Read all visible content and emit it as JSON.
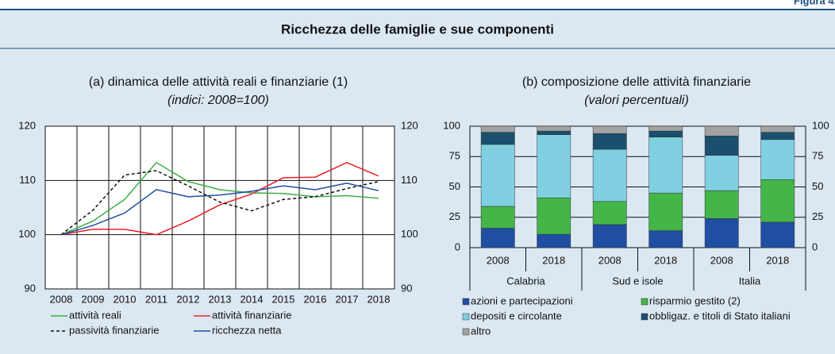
{
  "figure_label": "Figura 4.",
  "panel_title": "Ricchezza delle famiglie e sue componenti",
  "chart_data": [
    {
      "type": "line",
      "title": "(a) dinamica delle attività reali e finanziarie (1)",
      "subtitle": "(indici: 2008=100)",
      "categories": [
        "2008",
        "2009",
        "2010",
        "2011",
        "2012",
        "2013",
        "2014",
        "2015",
        "2016",
        "2017",
        "2018"
      ],
      "ylim": [
        90,
        120
      ],
      "yticks": [
        90,
        100,
        110,
        120
      ],
      "y2lim": [
        90,
        120
      ],
      "y2ticks": [
        90,
        100,
        110,
        120
      ],
      "grid": true,
      "series": [
        {
          "name": "attività reali",
          "color": "#3cb043",
          "style": "solid",
          "values": [
            100,
            102.5,
            106.5,
            113.3,
            109.8,
            108.3,
            107.7,
            107.6,
            107,
            107.2,
            106.7
          ]
        },
        {
          "name": "attività finanziarie",
          "color": "#e8202a",
          "style": "solid",
          "values": [
            100,
            101,
            101,
            100,
            102.5,
            105.5,
            107.5,
            110.5,
            110.6,
            113.3,
            110.8
          ]
        },
        {
          "name": "passività finanziarie",
          "color": "#111111",
          "style": "dashed",
          "values": [
            100,
            104.5,
            111,
            111.8,
            109,
            106,
            104.4,
            106.5,
            107,
            108.5,
            109.8
          ]
        },
        {
          "name": "ricchezza netta",
          "color": "#1f4ea3",
          "style": "solid",
          "values": [
            100,
            101.7,
            104,
            108.3,
            107,
            107.3,
            108,
            109,
            108.3,
            109.5,
            108.1
          ]
        }
      ]
    },
    {
      "type": "stacked_bar",
      "title": "(b) composizione delle attività finanziarie",
      "subtitle": "(valori percentuali)",
      "categories": [
        "2008",
        "2018",
        "2008",
        "2018",
        "2008",
        "2018"
      ],
      "groups": [
        "Calabria",
        "Sud e isole",
        "Italia"
      ],
      "ylim": [
        0,
        100
      ],
      "yticks": [
        0,
        25,
        50,
        75,
        100
      ],
      "y2lim": [
        0,
        100
      ],
      "y2ticks": [
        0,
        25,
        50,
        75,
        100
      ],
      "grid": true,
      "series": [
        {
          "name": "azioni e partecipazioni",
          "color": "#1f4ea3",
          "values": [
            16,
            11,
            19,
            14,
            24,
            21
          ]
        },
        {
          "name": "risparmio gestito (2)",
          "color": "#44b549",
          "values": [
            18,
            30,
            19,
            31,
            23,
            35
          ]
        },
        {
          "name": "depositi e circolante",
          "color": "#80d0e2",
          "values": [
            51,
            52,
            43,
            46,
            29,
            33
          ]
        },
        {
          "name": "obbligaz. e titoli di Stato italiani",
          "color": "#1a4f6e",
          "values": [
            10,
            3,
            13,
            5,
            16,
            6
          ]
        },
        {
          "name": "altro",
          "color": "#a3a3a3",
          "values": [
            5,
            4,
            6,
            4,
            8,
            5
          ]
        }
      ]
    }
  ]
}
